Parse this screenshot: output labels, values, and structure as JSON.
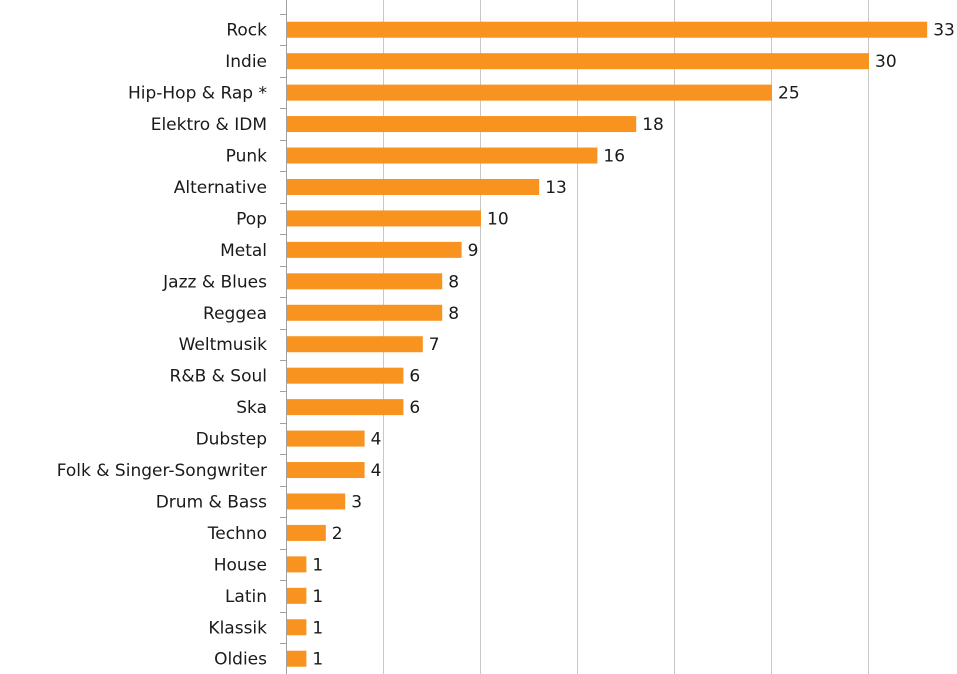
{
  "chart_data": {
    "type": "bar",
    "orientation": "horizontal",
    "categories": [
      "Rock",
      "Indie",
      "Hip-Hop & Rap *",
      "Elektro & IDM",
      "Punk",
      "Alternative",
      "Pop",
      "Metal",
      "Jazz & Blues",
      "Reggea",
      "Weltmusik",
      "R&B & Soul",
      "Ska",
      "Dubstep",
      "Folk & Singer-Songwriter",
      "Drum & Bass",
      "Techno",
      "House",
      "Latin",
      "Klassik",
      "Oldies"
    ],
    "values": [
      33,
      30,
      25,
      18,
      16,
      13,
      10,
      9,
      8,
      8,
      7,
      6,
      6,
      4,
      4,
      3,
      2,
      1,
      1,
      1,
      1
    ],
    "value_labels": [
      "33",
      "30",
      "25",
      "18",
      "16",
      "13",
      "10",
      "9",
      "8",
      "8",
      "7",
      "6",
      "6",
      "4",
      "4",
      "3",
      "2",
      "1",
      "1",
      "1",
      "1"
    ],
    "xlim": [
      0,
      35
    ],
    "grid_step": 5,
    "grid": true,
    "legend": "none",
    "bar_color": "#f7931e"
  }
}
